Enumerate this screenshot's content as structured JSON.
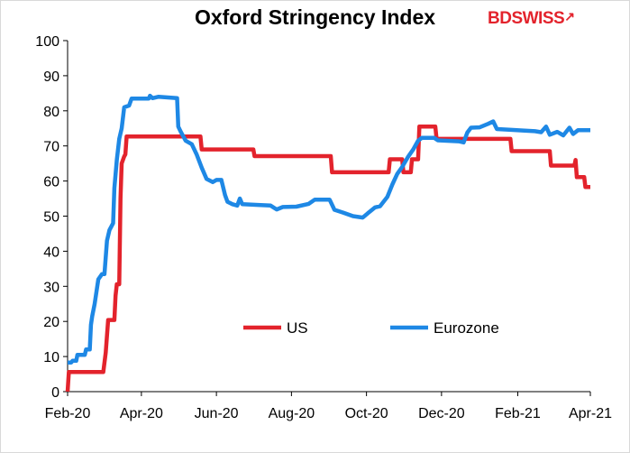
{
  "chart_data": {
    "type": "line",
    "title": "Oxford Stringency Index",
    "brand": {
      "bd": "BD",
      "swiss": "SWISS",
      "color": "#e3232c"
    },
    "ylim": [
      0,
      100
    ],
    "yticks": [
      0,
      10,
      20,
      30,
      40,
      50,
      60,
      70,
      80,
      90,
      100
    ],
    "x_range": [
      "2020-02-01",
      "2021-04-01"
    ],
    "xticks": [
      {
        "date": "2020-02-01",
        "label": "Feb-20"
      },
      {
        "date": "2020-04-01",
        "label": "Apr-20"
      },
      {
        "date": "2020-06-01",
        "label": "Jun-20"
      },
      {
        "date": "2020-08-01",
        "label": "Aug-20"
      },
      {
        "date": "2020-10-01",
        "label": "Oct-20"
      },
      {
        "date": "2020-12-01",
        "label": "Dec-20"
      },
      {
        "date": "2021-02-01",
        "label": "Feb-21"
      },
      {
        "date": "2021-04-01",
        "label": "Apr-21"
      }
    ],
    "legend_position": "inside-bottom-center",
    "series": [
      {
        "name": "US",
        "color": "#e3232c",
        "step": true,
        "points": [
          [
            "2020-02-01",
            0
          ],
          [
            "2020-02-02",
            5.6
          ],
          [
            "2020-03-01",
            5.6
          ],
          [
            "2020-03-03",
            11.1
          ],
          [
            "2020-03-05",
            20.4
          ],
          [
            "2020-03-10",
            20.4
          ],
          [
            "2020-03-11",
            27.3
          ],
          [
            "2020-03-12",
            30.6
          ],
          [
            "2020-03-14",
            30.6
          ],
          [
            "2020-03-15",
            55
          ],
          [
            "2020-03-16",
            65
          ],
          [
            "2020-03-18",
            67
          ],
          [
            "2020-03-19",
            67.6
          ],
          [
            "2020-03-20",
            72.7
          ],
          [
            "2020-05-19",
            72.7
          ],
          [
            "2020-05-20",
            69.0
          ],
          [
            "2020-07-01",
            69.0
          ],
          [
            "2020-07-02",
            67.1
          ],
          [
            "2020-09-02",
            67.1
          ],
          [
            "2020-09-03",
            62.5
          ],
          [
            "2020-10-19",
            62.5
          ],
          [
            "2020-10-20",
            66.2
          ],
          [
            "2020-10-30",
            66.2
          ],
          [
            "2020-10-31",
            62.5
          ],
          [
            "2020-11-06",
            62.5
          ],
          [
            "2020-11-07",
            66.2
          ],
          [
            "2020-11-12",
            66.2
          ],
          [
            "2020-11-13",
            75.5
          ],
          [
            "2020-11-26",
            75.5
          ],
          [
            "2020-11-27",
            72.0
          ],
          [
            "2021-01-01",
            72.0
          ],
          [
            "2021-01-02",
            72.0
          ],
          [
            "2021-01-26",
            72.0
          ],
          [
            "2021-01-27",
            68.5
          ],
          [
            "2021-02-27",
            68.5
          ],
          [
            "2021-02-28",
            64.4
          ],
          [
            "2021-03-19",
            64.4
          ],
          [
            "2021-03-20",
            66.0
          ],
          [
            "2021-03-21",
            61.1
          ],
          [
            "2021-03-27",
            61.1
          ],
          [
            "2021-03-28",
            58.3
          ],
          [
            "2021-04-01",
            58.3
          ]
        ]
      },
      {
        "name": "Eurozone",
        "color": "#1e88e5",
        "step": false,
        "points": [
          [
            "2020-02-01",
            8.3
          ],
          [
            "2020-02-04",
            8.3
          ],
          [
            "2020-02-05",
            8.8
          ],
          [
            "2020-02-08",
            8.8
          ],
          [
            "2020-02-09",
            10.5
          ],
          [
            "2020-02-15",
            10.5
          ],
          [
            "2020-02-16",
            12.0
          ],
          [
            "2020-02-19",
            12.0
          ],
          [
            "2020-02-20",
            19.0
          ],
          [
            "2020-02-21",
            21.5
          ],
          [
            "2020-02-23",
            25.0
          ],
          [
            "2020-02-26",
            32.0
          ],
          [
            "2020-02-29",
            33.5
          ],
          [
            "2020-03-02",
            33.5
          ],
          [
            "2020-03-04",
            43.0
          ],
          [
            "2020-03-06",
            46.0
          ],
          [
            "2020-03-09",
            48.0
          ],
          [
            "2020-03-10",
            58.0
          ],
          [
            "2020-03-12",
            66.0
          ],
          [
            "2020-03-14",
            72.0
          ],
          [
            "2020-03-16",
            75.0
          ],
          [
            "2020-03-18",
            81.0
          ],
          [
            "2020-03-22",
            81.5
          ],
          [
            "2020-03-24",
            83.5
          ],
          [
            "2020-04-07",
            83.5
          ],
          [
            "2020-04-08",
            84.3
          ],
          [
            "2020-04-10",
            83.6
          ],
          [
            "2020-04-15",
            84.0
          ],
          [
            "2020-04-30",
            83.6
          ],
          [
            "2020-05-01",
            75.5
          ],
          [
            "2020-05-03",
            74.0
          ],
          [
            "2020-05-07",
            71.5
          ],
          [
            "2020-05-12",
            70.5
          ],
          [
            "2020-05-16",
            67.5
          ],
          [
            "2020-05-20",
            63.8
          ],
          [
            "2020-05-24",
            60.6
          ],
          [
            "2020-05-29",
            59.7
          ],
          [
            "2020-06-01",
            60.3
          ],
          [
            "2020-06-05",
            60.3
          ],
          [
            "2020-06-08",
            56.0
          ],
          [
            "2020-06-10",
            54.1
          ],
          [
            "2020-06-14",
            53.4
          ],
          [
            "2020-06-18",
            53.0
          ],
          [
            "2020-06-20",
            55.0
          ],
          [
            "2020-06-22",
            53.4
          ],
          [
            "2020-07-05",
            53.2
          ],
          [
            "2020-07-15",
            53.0
          ],
          [
            "2020-07-20",
            51.9
          ],
          [
            "2020-07-25",
            52.6
          ],
          [
            "2020-08-05",
            52.7
          ],
          [
            "2020-08-15",
            53.5
          ],
          [
            "2020-08-20",
            54.7
          ],
          [
            "2020-09-01",
            54.7
          ],
          [
            "2020-09-05",
            51.8
          ],
          [
            "2020-09-12",
            51.0
          ],
          [
            "2020-09-20",
            50.0
          ],
          [
            "2020-09-28",
            49.6
          ],
          [
            "2020-10-02",
            50.8
          ],
          [
            "2020-10-08",
            52.5
          ],
          [
            "2020-10-12",
            52.8
          ],
          [
            "2020-10-18",
            55.5
          ],
          [
            "2020-10-22",
            59.0
          ],
          [
            "2020-10-26",
            62.0
          ],
          [
            "2020-10-30",
            64.0
          ],
          [
            "2020-11-04",
            67.0
          ],
          [
            "2020-11-08",
            69.0
          ],
          [
            "2020-11-12",
            71.5
          ],
          [
            "2020-11-15",
            72.3
          ],
          [
            "2020-11-25",
            72.3
          ],
          [
            "2020-11-28",
            71.6
          ],
          [
            "2020-12-15",
            71.3
          ],
          [
            "2020-12-19",
            71.0
          ],
          [
            "2020-12-22",
            73.8
          ],
          [
            "2020-12-25",
            75.2
          ],
          [
            "2021-01-01",
            75.3
          ],
          [
            "2021-01-08",
            76.3
          ],
          [
            "2021-01-12",
            77.0
          ],
          [
            "2021-01-15",
            74.8
          ],
          [
            "2021-01-25",
            74.6
          ],
          [
            "2021-02-05",
            74.4
          ],
          [
            "2021-02-15",
            74.2
          ],
          [
            "2021-02-20",
            73.9
          ],
          [
            "2021-02-24",
            75.5
          ],
          [
            "2021-02-27",
            73.2
          ],
          [
            "2021-03-05",
            74.0
          ],
          [
            "2021-03-10",
            73.0
          ],
          [
            "2021-03-15",
            75.2
          ],
          [
            "2021-03-18",
            73.4
          ],
          [
            "2021-03-22",
            74.5
          ],
          [
            "2021-04-01",
            74.5
          ]
        ]
      }
    ]
  }
}
